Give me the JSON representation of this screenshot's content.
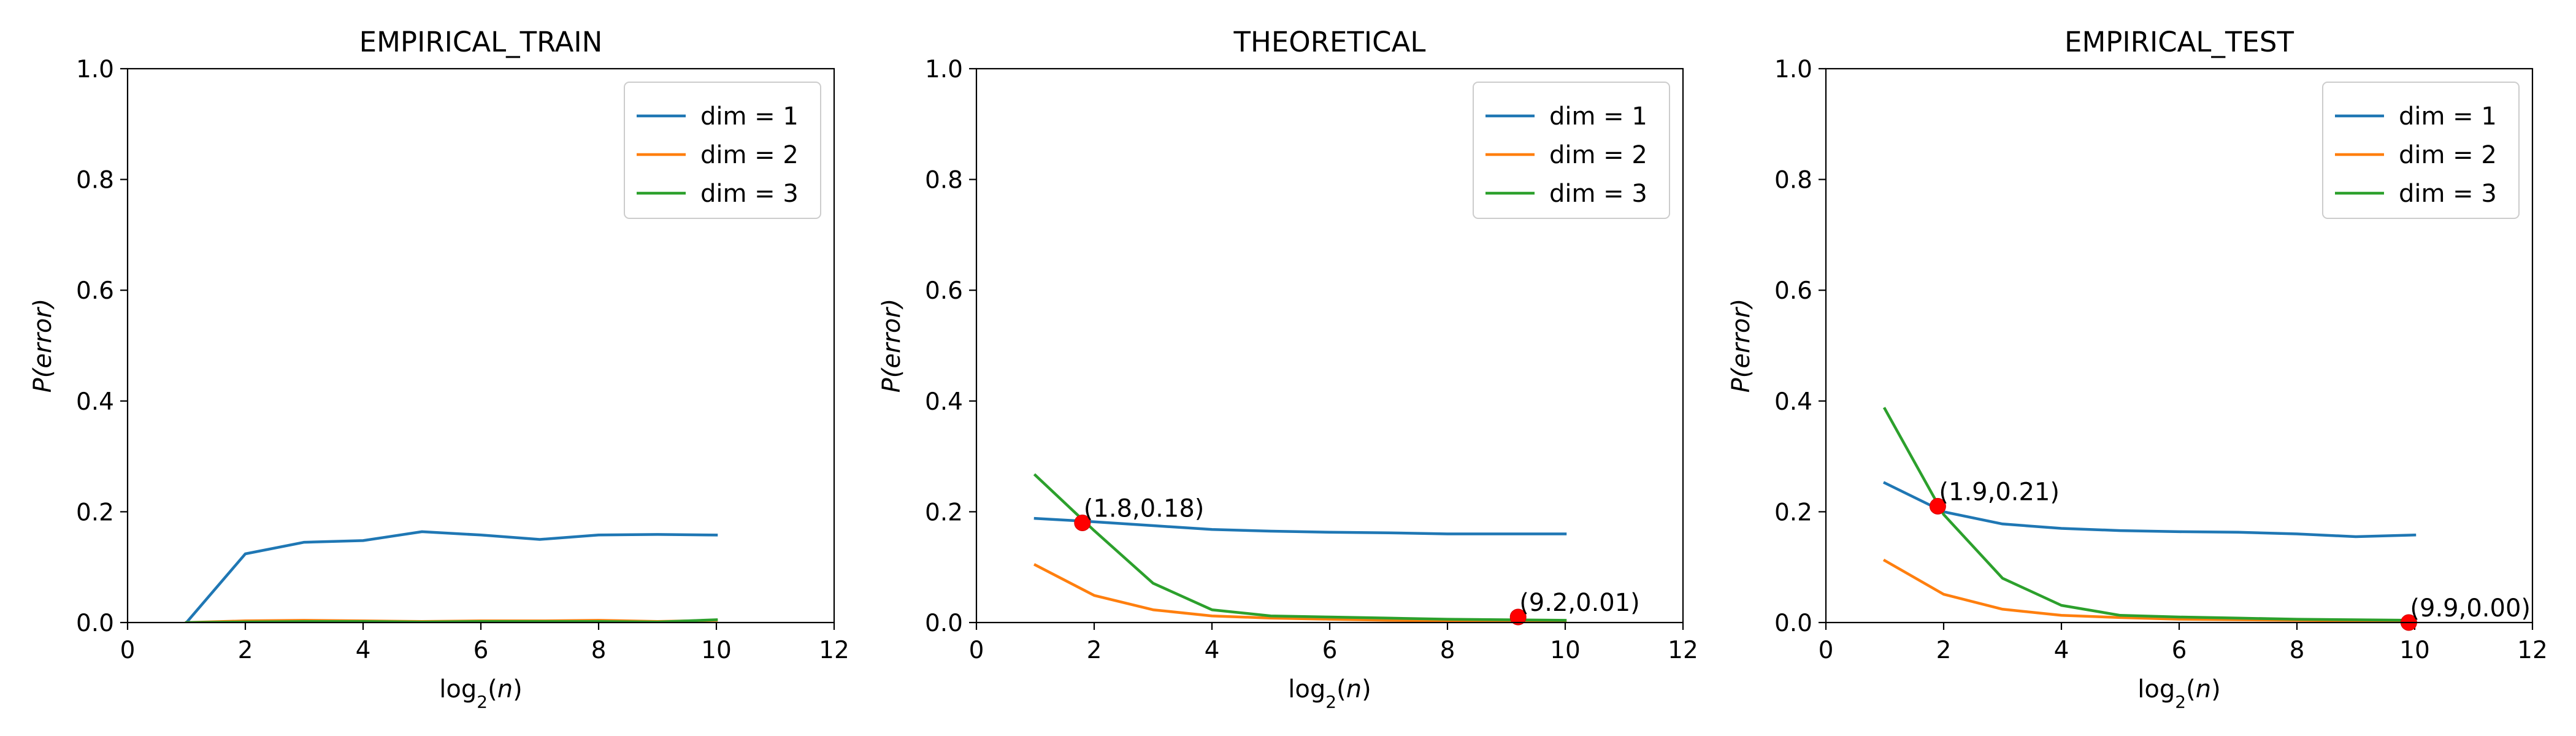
{
  "chart_data": [
    {
      "type": "line",
      "title": "EMPIRICAL_TRAIN",
      "xlabel_base": "log",
      "xlabel_sub": "2",
      "xlabel_arg": "n",
      "ylabel": "P(error)",
      "xlim": [
        0,
        12
      ],
      "ylim": [
        0,
        1.0
      ],
      "xticks": [
        "0",
        "2",
        "4",
        "6",
        "8",
        "10",
        "12"
      ],
      "yticks": [
        "0.0",
        "0.2",
        "0.4",
        "0.6",
        "0.8",
        "1.0"
      ],
      "grid": false,
      "legend_position": "top-right",
      "x": [
        1,
        2,
        3,
        4,
        5,
        6,
        7,
        8,
        9,
        10
      ],
      "series": [
        {
          "name": "dim = 1",
          "color": "#1f77b4",
          "values": [
            0.0,
            0.124,
            0.145,
            0.148,
            0.164,
            0.158,
            0.15,
            0.158,
            0.159,
            0.158
          ]
        },
        {
          "name": "dim = 2",
          "color": "#ff7f0e",
          "values": [
            0.0,
            0.003,
            0.004,
            0.003,
            0.002,
            0.003,
            0.003,
            0.004,
            0.002,
            0.004
          ]
        },
        {
          "name": "dim = 3",
          "color": "#2ca02c",
          "values": [
            0.0,
            0.001,
            0.002,
            0.002,
            0.001,
            0.002,
            0.002,
            0.002,
            0.001,
            0.005
          ]
        }
      ],
      "annotations": []
    },
    {
      "type": "line",
      "title": "THEORETICAL",
      "xlabel_base": "log",
      "xlabel_sub": "2",
      "xlabel_arg": "n",
      "ylabel": "P(error)",
      "xlim": [
        0,
        12
      ],
      "ylim": [
        0,
        1.0
      ],
      "xticks": [
        "0",
        "2",
        "4",
        "6",
        "8",
        "10",
        "12"
      ],
      "yticks": [
        "0.0",
        "0.2",
        "0.4",
        "0.6",
        "0.8",
        "1.0"
      ],
      "grid": false,
      "legend_position": "top-right",
      "x": [
        1,
        2,
        3,
        4,
        5,
        6,
        7,
        8,
        9,
        10
      ],
      "series": [
        {
          "name": "dim = 1",
          "color": "#1f77b4",
          "values": [
            0.188,
            0.182,
            0.175,
            0.168,
            0.165,
            0.163,
            0.162,
            0.16,
            0.16,
            0.16
          ]
        },
        {
          "name": "dim = 2",
          "color": "#ff7f0e",
          "values": [
            0.104,
            0.049,
            0.023,
            0.012,
            0.008,
            0.006,
            0.004,
            0.003,
            0.002,
            0.002
          ]
        },
        {
          "name": "dim = 3",
          "color": "#2ca02c",
          "values": [
            0.266,
            0.166,
            0.071,
            0.023,
            0.012,
            0.01,
            0.008,
            0.006,
            0.005,
            0.004
          ]
        }
      ],
      "annotations": [
        {
          "x": 1.8,
          "y": 0.18,
          "label": "(1.8,0.18)"
        },
        {
          "x": 9.2,
          "y": 0.01,
          "label": "(9.2,0.01)"
        }
      ]
    },
    {
      "type": "line",
      "title": "EMPIRICAL_TEST",
      "xlabel_base": "log",
      "xlabel_sub": "2",
      "xlabel_arg": "n",
      "ylabel": "P(error)",
      "xlim": [
        0,
        12
      ],
      "ylim": [
        0,
        1.0
      ],
      "xticks": [
        "0",
        "2",
        "4",
        "6",
        "8",
        "10",
        "12"
      ],
      "yticks": [
        "0.0",
        "0.2",
        "0.4",
        "0.6",
        "0.8",
        "1.0"
      ],
      "grid": false,
      "legend_position": "top-right",
      "x": [
        1,
        2,
        3,
        4,
        5,
        6,
        7,
        8,
        9,
        10
      ],
      "series": [
        {
          "name": "dim = 1",
          "color": "#1f77b4",
          "values": [
            0.252,
            0.2,
            0.178,
            0.17,
            0.166,
            0.164,
            0.163,
            0.16,
            0.155,
            0.158
          ]
        },
        {
          "name": "dim = 2",
          "color": "#ff7f0e",
          "values": [
            0.112,
            0.051,
            0.024,
            0.013,
            0.009,
            0.006,
            0.005,
            0.004,
            0.003,
            0.003
          ]
        },
        {
          "name": "dim = 3",
          "color": "#2ca02c",
          "values": [
            0.386,
            0.195,
            0.08,
            0.031,
            0.013,
            0.01,
            0.008,
            0.006,
            0.005,
            0.004
          ]
        }
      ],
      "annotations": [
        {
          "x": 1.9,
          "y": 0.21,
          "label": "(1.9,0.21)"
        },
        {
          "x": 9.9,
          "y": 0.0,
          "label": "(9.9,0.00)"
        }
      ]
    }
  ]
}
